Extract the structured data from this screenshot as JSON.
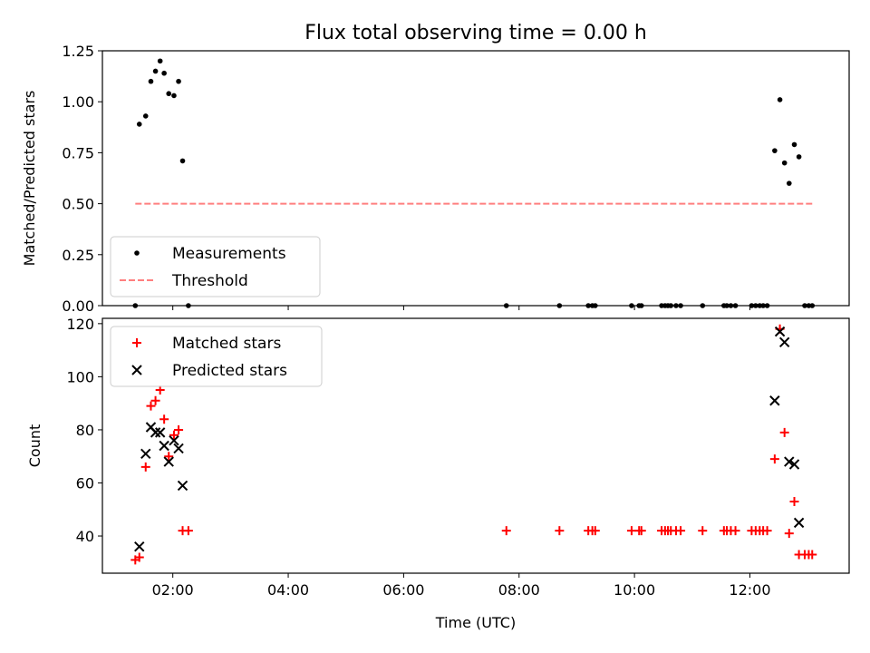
{
  "figure_title": "Flux total observing time = 0.00 h",
  "chart_data": [
    {
      "type": "scatter",
      "title": "Flux total observing time = 0.00 h",
      "xlabel": "",
      "ylabel": "Matched/Predicted stars",
      "xlim": [
        0.78,
        13.72
      ],
      "ylim": [
        0,
        1.25
      ],
      "yticks": [
        0,
        0.25,
        0.5,
        0.75,
        1.0,
        1.25
      ],
      "ytick_labels": [
        "0.00",
        "0.25",
        "0.50",
        "0.75",
        "1.00",
        "1.25"
      ],
      "xticks": [
        2,
        4,
        6,
        8,
        10,
        12
      ],
      "xtick_labels": [],
      "grid": false,
      "legend_position": "lower-left",
      "legend": [
        {
          "label": "Measurements",
          "marker": "dot",
          "color": "#000000"
        },
        {
          "label": "Threshold",
          "marker": "dashed-line",
          "color": "#ff7f7f"
        }
      ],
      "series": [
        {
          "name": "Measurements",
          "color": "#000000",
          "points": [
            [
              1.35,
              0
            ],
            [
              1.42,
              0.89
            ],
            [
              1.53,
              0.93
            ],
            [
              1.62,
              1.1
            ],
            [
              1.7,
              1.15
            ],
            [
              1.78,
              1.2
            ],
            [
              1.85,
              1.14
            ],
            [
              1.93,
              1.04
            ],
            [
              2.02,
              1.03
            ],
            [
              2.1,
              1.1
            ],
            [
              2.17,
              0.71
            ],
            [
              2.27,
              0
            ],
            [
              7.78,
              0
            ],
            [
              8.7,
              0
            ],
            [
              9.2,
              0
            ],
            [
              9.27,
              0
            ],
            [
              9.32,
              0
            ],
            [
              9.95,
              0
            ],
            [
              10.08,
              0
            ],
            [
              10.12,
              0
            ],
            [
              10.47,
              0
            ],
            [
              10.53,
              0
            ],
            [
              10.58,
              0
            ],
            [
              10.63,
              0
            ],
            [
              10.72,
              0
            ],
            [
              10.8,
              0
            ],
            [
              11.18,
              0
            ],
            [
              11.55,
              0
            ],
            [
              11.6,
              0
            ],
            [
              11.67,
              0
            ],
            [
              11.75,
              0
            ],
            [
              12.03,
              0
            ],
            [
              12.1,
              0
            ],
            [
              12.17,
              0
            ],
            [
              12.23,
              0
            ],
            [
              12.3,
              0
            ],
            [
              12.43,
              0.76
            ],
            [
              12.52,
              1.01
            ],
            [
              12.6,
              0.7
            ],
            [
              12.68,
              0.6
            ],
            [
              12.77,
              0.79
            ],
            [
              12.85,
              0.73
            ],
            [
              12.95,
              0
            ],
            [
              13.02,
              0
            ],
            [
              13.08,
              0
            ]
          ]
        },
        {
          "name": "Threshold",
          "color": "#ff7f7f",
          "points": [
            [
              1.35,
              0.5
            ],
            [
              13.08,
              0.5
            ]
          ]
        }
      ]
    },
    {
      "type": "scatter",
      "title": "",
      "xlabel": "Time (UTC)",
      "ylabel": "Count",
      "xlim": [
        0.78,
        13.72
      ],
      "ylim": [
        26,
        122
      ],
      "yticks": [
        40,
        60,
        80,
        100,
        120
      ],
      "ytick_labels": [
        "40",
        "60",
        "80",
        "100",
        "120"
      ],
      "xticks": [
        2,
        4,
        6,
        8,
        10,
        12
      ],
      "xtick_labels": [
        "02:00",
        "04:00",
        "06:00",
        "08:00",
        "10:00",
        "12:00"
      ],
      "grid": false,
      "legend_position": "upper-left",
      "legend": [
        {
          "label": "Matched stars",
          "marker": "plus",
          "color": "#ff0000"
        },
        {
          "label": "Predicted stars",
          "marker": "x",
          "color": "#000000"
        }
      ],
      "series": [
        {
          "name": "Matched stars",
          "color": "#ff0000",
          "points": [
            [
              1.35,
              31
            ],
            [
              1.42,
              32
            ],
            [
              1.53,
              66
            ],
            [
              1.62,
              89
            ],
            [
              1.7,
              91
            ],
            [
              1.78,
              95
            ],
            [
              1.85,
              84
            ],
            [
              1.93,
              70
            ],
            [
              2.02,
              78
            ],
            [
              2.1,
              80
            ],
            [
              2.17,
              42
            ],
            [
              2.27,
              42
            ],
            [
              7.78,
              42
            ],
            [
              8.7,
              42
            ],
            [
              9.2,
              42
            ],
            [
              9.27,
              42
            ],
            [
              9.32,
              42
            ],
            [
              9.95,
              42
            ],
            [
              10.08,
              42
            ],
            [
              10.12,
              42
            ],
            [
              10.47,
              42
            ],
            [
              10.53,
              42
            ],
            [
              10.58,
              42
            ],
            [
              10.63,
              42
            ],
            [
              10.72,
              42
            ],
            [
              10.8,
              42
            ],
            [
              11.18,
              42
            ],
            [
              11.55,
              42
            ],
            [
              11.6,
              42
            ],
            [
              11.67,
              42
            ],
            [
              11.75,
              42
            ],
            [
              12.03,
              42
            ],
            [
              12.1,
              42
            ],
            [
              12.17,
              42
            ],
            [
              12.23,
              42
            ],
            [
              12.3,
              42
            ],
            [
              12.43,
              69
            ],
            [
              12.52,
              118
            ],
            [
              12.6,
              79
            ],
            [
              12.68,
              41
            ],
            [
              12.77,
              53
            ],
            [
              12.85,
              33
            ],
            [
              12.95,
              33
            ],
            [
              13.02,
              33
            ],
            [
              13.08,
              33
            ]
          ]
        },
        {
          "name": "Predicted stars",
          "color": "#000000",
          "points": [
            [
              1.42,
              36
            ],
            [
              1.53,
              71
            ],
            [
              1.62,
              81
            ],
            [
              1.7,
              79
            ],
            [
              1.78,
              79
            ],
            [
              1.85,
              74
            ],
            [
              1.93,
              68
            ],
            [
              2.02,
              76
            ],
            [
              2.1,
              73
            ],
            [
              2.17,
              59
            ],
            [
              12.43,
              91
            ],
            [
              12.52,
              117
            ],
            [
              12.6,
              113
            ],
            [
              12.68,
              68
            ],
            [
              12.77,
              67
            ],
            [
              12.85,
              45
            ]
          ]
        }
      ]
    }
  ]
}
